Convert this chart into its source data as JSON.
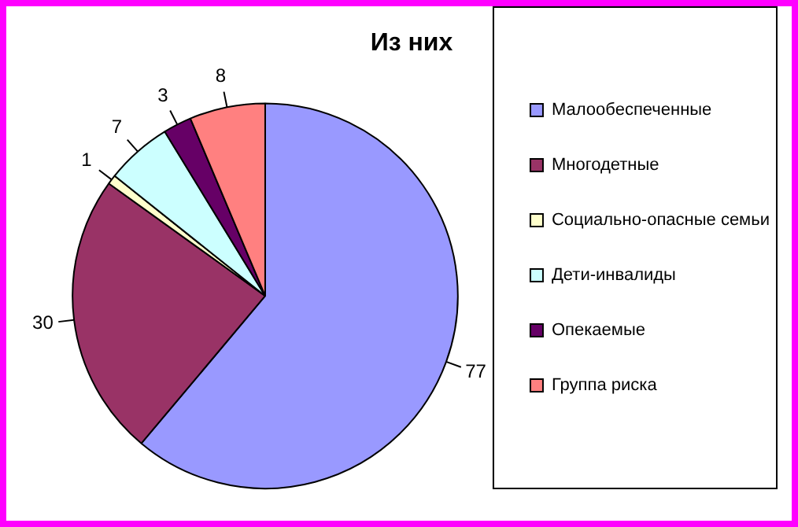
{
  "chart_data": {
    "type": "pie",
    "title": "Из них",
    "categories": [
      "Малообеспеченные",
      "Многодетные",
      "Социально-опасные семьи",
      "Дети-инвалиды",
      "Опекаемые",
      "Группа риска"
    ],
    "values": [
      77,
      30,
      1,
      7,
      3,
      8
    ],
    "colors": [
      "#9999ff",
      "#993366",
      "#ffffcc",
      "#ccffff",
      "#660066",
      "#ff8080"
    ],
    "data_labels": true,
    "legend": "right"
  }
}
